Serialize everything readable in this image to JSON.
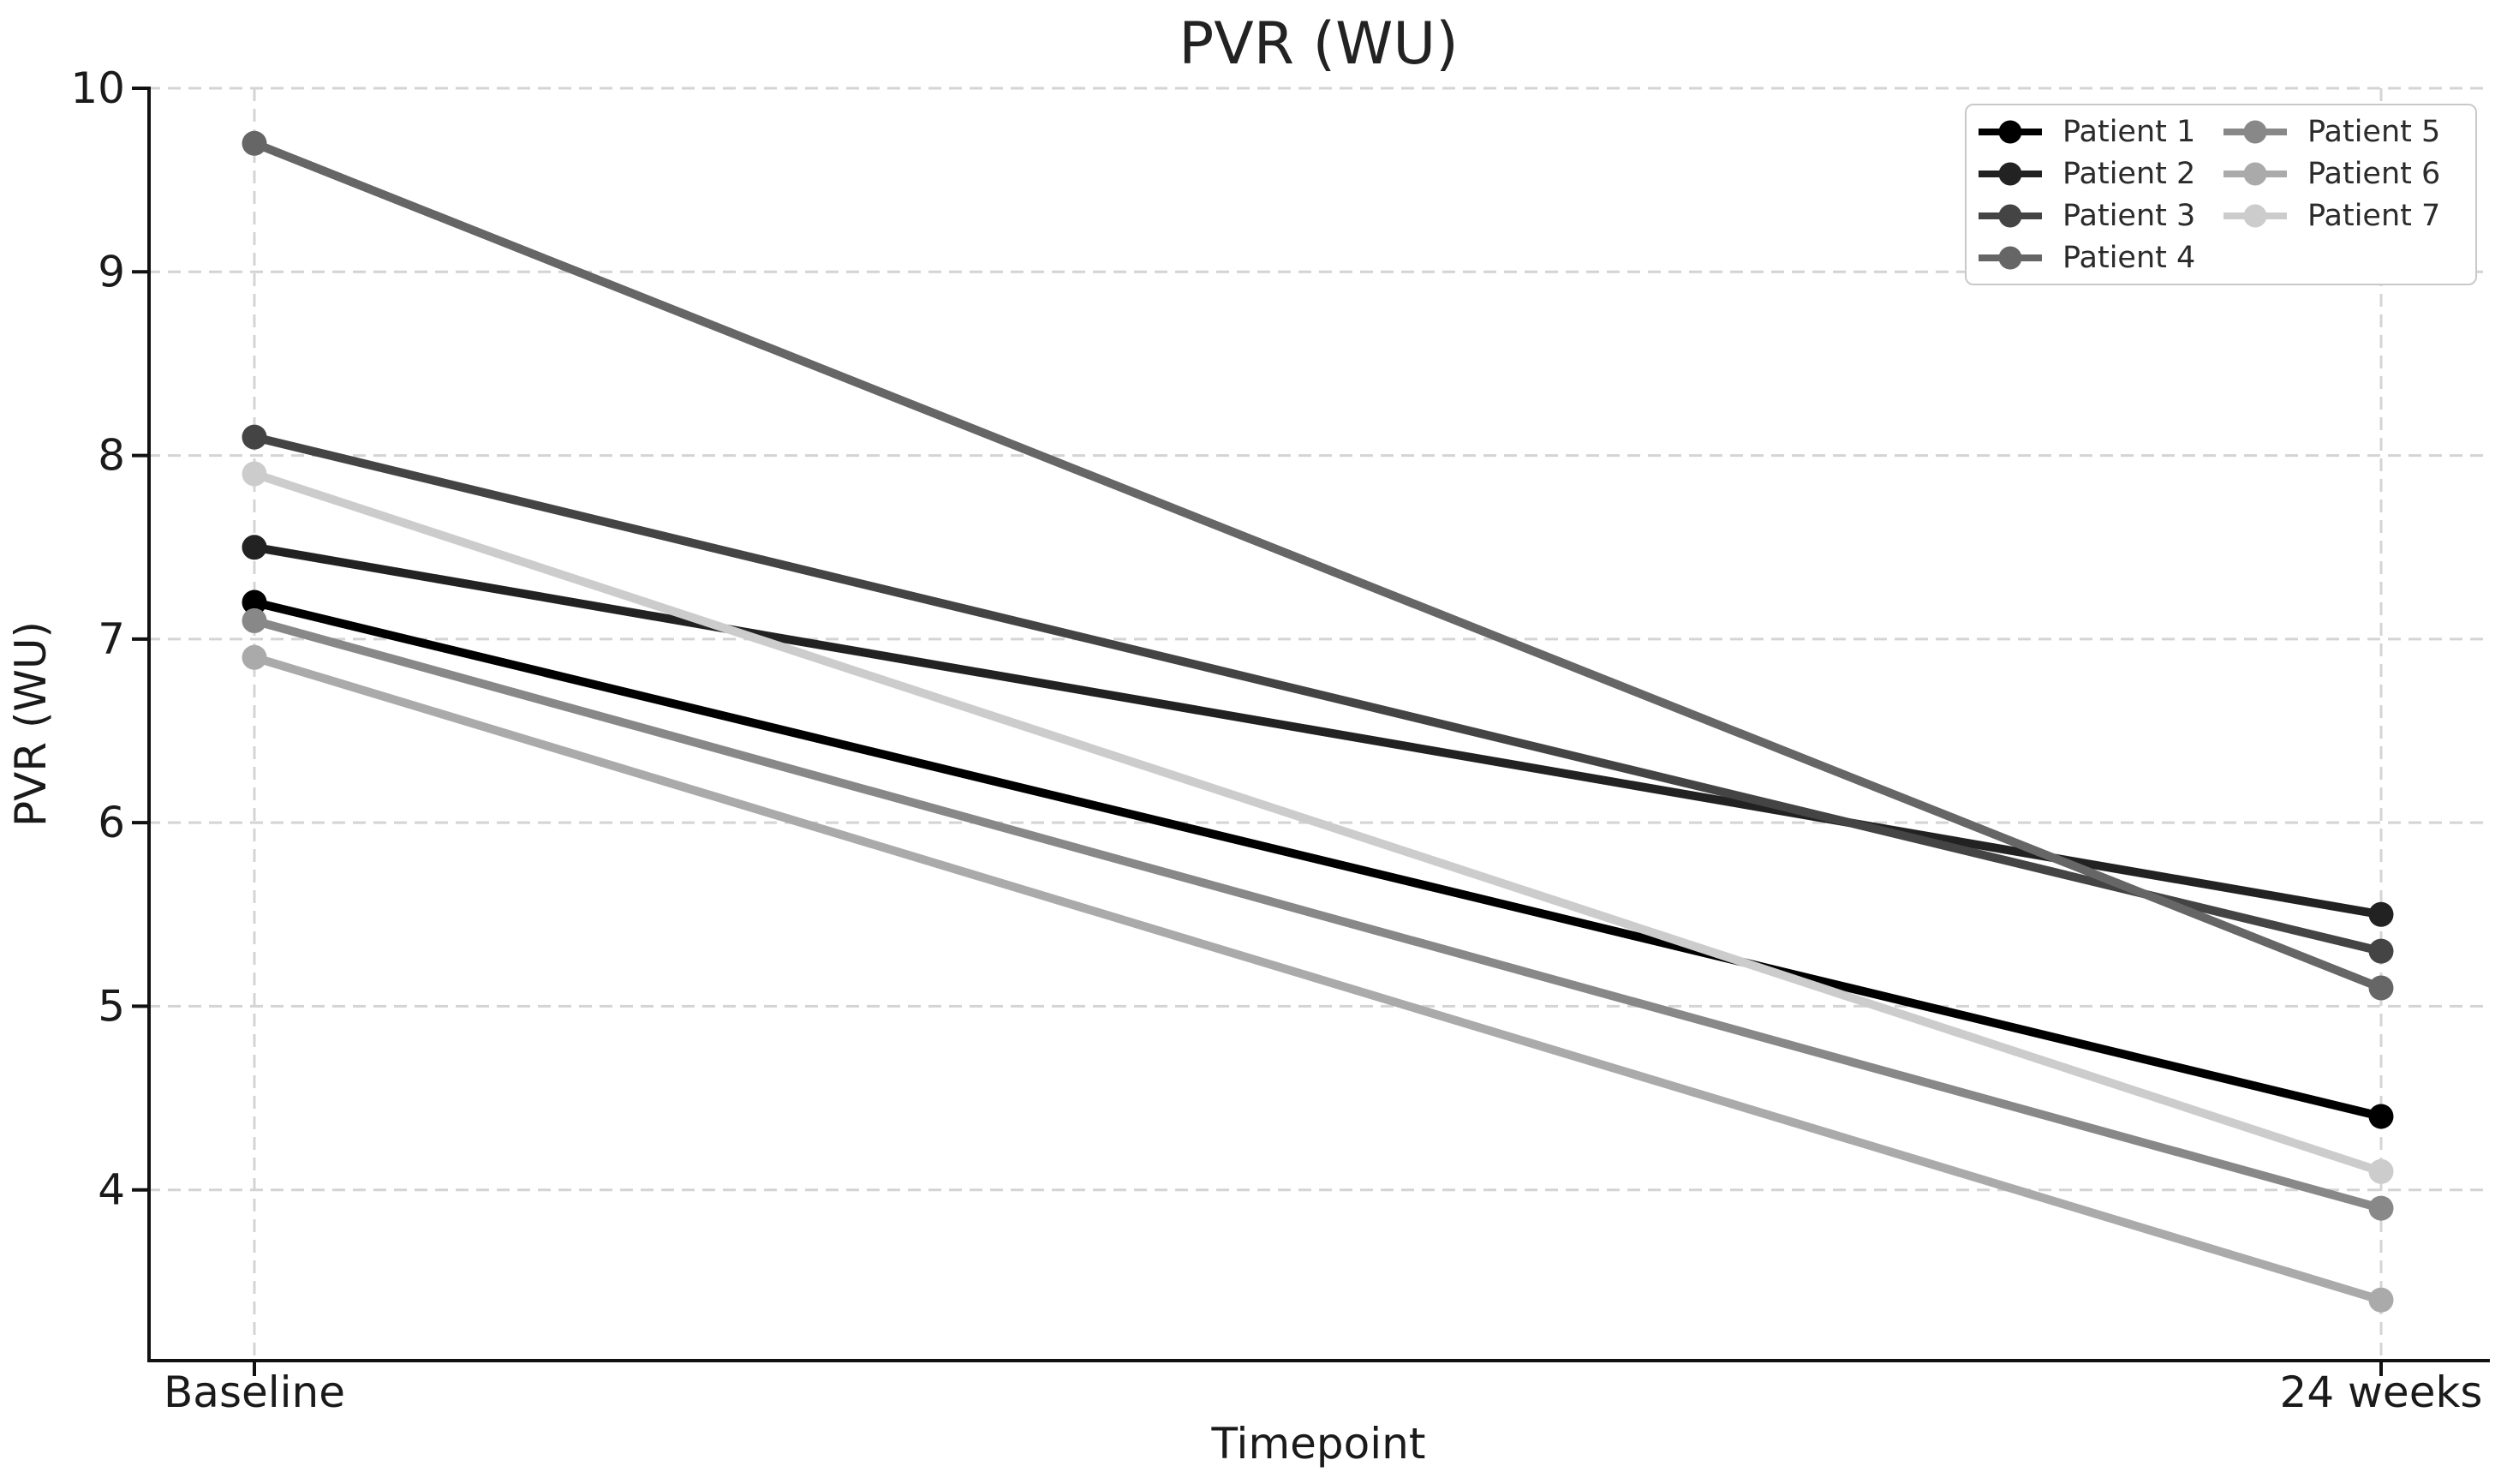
{
  "figure": {
    "background": "#ffffff",
    "text_color": "#1a1a1a"
  },
  "chart_data": {
    "type": "line",
    "title": "PVR (WU)",
    "xlabel": "Timepoint",
    "ylabel": "PVR (WU)",
    "categories": [
      "Baseline",
      "24 weeks"
    ],
    "series": [
      {
        "name": "Patient 1",
        "color": "#000000",
        "values": [
          7.2,
          4.4
        ]
      },
      {
        "name": "Patient 2",
        "color": "#222222",
        "values": [
          7.5,
          5.5
        ]
      },
      {
        "name": "Patient 3",
        "color": "#444444",
        "values": [
          8.1,
          5.3
        ]
      },
      {
        "name": "Patient 4",
        "color": "#666666",
        "values": [
          9.7,
          5.1
        ]
      },
      {
        "name": "Patient 5",
        "color": "#888888",
        "values": [
          7.1,
          3.9
        ]
      },
      {
        "name": "Patient 6",
        "color": "#aaaaaa",
        "values": [
          6.9,
          3.4
        ]
      },
      {
        "name": "Patient 7",
        "color": "#cccccc",
        "values": [
          7.9,
          4.1
        ]
      }
    ],
    "yticks": [
      4,
      5,
      6,
      7,
      8,
      9,
      10
    ],
    "ylim": [
      3.07,
      10
    ],
    "grid": true,
    "grid_style": "dashed",
    "grid_color": "#d4d4d4",
    "legend": {
      "position": "upper right",
      "columns": 2
    }
  }
}
